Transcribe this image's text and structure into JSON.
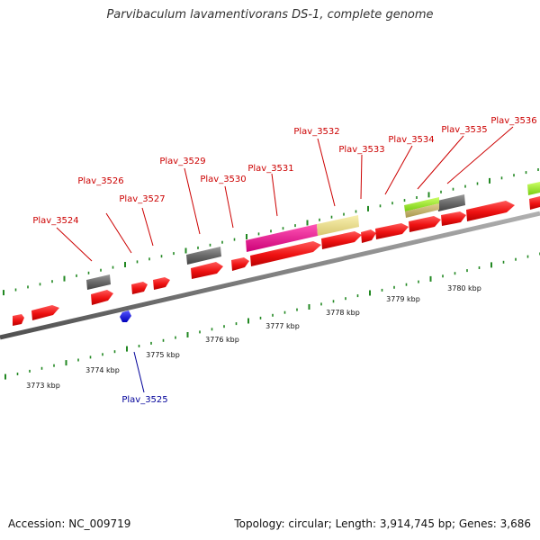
{
  "title": "Parvibaculum lavamentivorans DS-1, complete genome",
  "footer": {
    "accession": "Accession: NC_009719",
    "topology": "Topology: circular; Length: 3,914,745 bp; Genes: 3,686"
  },
  "colors": {
    "gene_red": "#ee1111",
    "gene_blue": "#1111dd",
    "gene_gray": "#666666",
    "magenta": "#ee1188",
    "khaki": "#eee08a",
    "lime": "#99ee22",
    "tan": "#c8b870",
    "tick_green": "#228822",
    "label_red": "#cc0000",
    "label_blue": "#000099"
  },
  "gene_labels": {
    "g3524": "Plav_3524",
    "g3525": "Plav_3525",
    "g3526": "Plav_3526",
    "g3527": "Plav_3527",
    "g3529": "Plav_3529",
    "g3530": "Plav_3530",
    "g3531": "Plav_3531",
    "g3532": "Plav_3532",
    "g3533": "Plav_3533",
    "g3534": "Plav_3534",
    "g3535": "Plav_3535",
    "g3536": "Plav_3536"
  },
  "kbp_labels": {
    "k3773": "3773 kbp",
    "k3774": "3774 kbp",
    "k3775": "3775 kbp",
    "k3776": "3776 kbp",
    "k3777": "3777 kbp",
    "k3778": "3778 kbp",
    "k3779": "3779 kbp",
    "k3780": "3780 kbp"
  }
}
